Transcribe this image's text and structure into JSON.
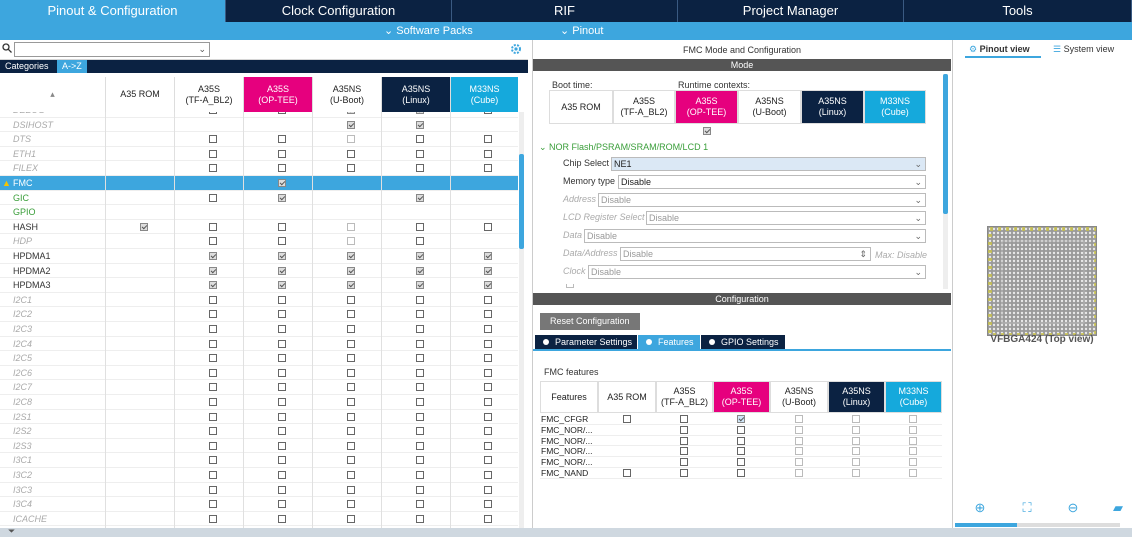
{
  "tabs": [
    "Pinout & Configuration",
    "Clock Configuration",
    "RIF",
    "Project Manager",
    "Tools"
  ],
  "subbar": {
    "software_packs": "⌄ Software Packs",
    "pinout": "⌄ Pinout"
  },
  "left": {
    "categories_label": "Categories",
    "az_label": "A->Z",
    "sort_icon": "▴",
    "col_headers": [
      "A35 ROM",
      "A35S\n(TF-A_BL2)",
      "A35S\n(OP-TEE)",
      "A35NS\n(U-Boot)",
      "A35NS\n(Linux)",
      "M33NS\n(Cube)"
    ],
    "rows": [
      {
        "name": "DEBUG",
        "italic": true,
        "color": "#aaa",
        "cells": [
          0,
          1,
          1,
          3,
          3,
          1
        ]
      },
      {
        "name": "DSIHOST",
        "italic": true,
        "color": "#aaa",
        "cells": [
          0,
          0,
          0,
          3,
          3,
          0
        ]
      },
      {
        "name": "DTS",
        "italic": true,
        "color": "#aaa",
        "cells": [
          0,
          1,
          1,
          2,
          1,
          1
        ]
      },
      {
        "name": "ETH1",
        "italic": true,
        "color": "#aaa",
        "cells": [
          0,
          1,
          1,
          1,
          1,
          1
        ]
      },
      {
        "name": "FILEX",
        "italic": true,
        "color": "#aaa",
        "cells": [
          0,
          1,
          1,
          1,
          1,
          1
        ]
      },
      {
        "name": "FMC",
        "italic": false,
        "color": "#fff",
        "selected": true,
        "warn": true,
        "cells": [
          0,
          0,
          3,
          0,
          0,
          0
        ]
      },
      {
        "name": "GIC",
        "italic": false,
        "color": "#3a9e3a",
        "cells": [
          0,
          1,
          3,
          0,
          3,
          0
        ]
      },
      {
        "name": "GPIO",
        "italic": false,
        "color": "#3a9e3a",
        "cells": [
          0,
          0,
          0,
          0,
          0,
          0
        ]
      },
      {
        "name": "HASH",
        "italic": false,
        "color": "#333",
        "cells": [
          3,
          1,
          1,
          2,
          1,
          1
        ]
      },
      {
        "name": "HDP",
        "italic": true,
        "color": "#aaa",
        "cells": [
          0,
          1,
          1,
          2,
          1,
          0
        ]
      },
      {
        "name": "HPDMA1",
        "italic": false,
        "color": "#333",
        "cells": [
          0,
          3,
          3,
          3,
          3,
          3
        ]
      },
      {
        "name": "HPDMA2",
        "italic": false,
        "color": "#333",
        "cells": [
          0,
          3,
          3,
          3,
          3,
          3
        ]
      },
      {
        "name": "HPDMA3",
        "italic": false,
        "color": "#333",
        "cells": [
          0,
          3,
          3,
          3,
          3,
          3
        ]
      },
      {
        "name": "I2C1",
        "italic": true,
        "color": "#aaa",
        "cells": [
          0,
          1,
          1,
          1,
          1,
          1
        ]
      },
      {
        "name": "I2C2",
        "italic": true,
        "color": "#aaa",
        "cells": [
          0,
          1,
          1,
          1,
          1,
          1
        ]
      },
      {
        "name": "I2C3",
        "italic": true,
        "color": "#aaa",
        "cells": [
          0,
          1,
          1,
          1,
          1,
          1
        ]
      },
      {
        "name": "I2C4",
        "italic": true,
        "color": "#aaa",
        "cells": [
          0,
          1,
          1,
          1,
          1,
          1
        ]
      },
      {
        "name": "I2C5",
        "italic": true,
        "color": "#aaa",
        "cells": [
          0,
          1,
          1,
          1,
          1,
          1
        ]
      },
      {
        "name": "I2C6",
        "italic": true,
        "color": "#aaa",
        "cells": [
          0,
          1,
          1,
          1,
          1,
          1
        ]
      },
      {
        "name": "I2C7",
        "italic": true,
        "color": "#aaa",
        "cells": [
          0,
          1,
          1,
          1,
          1,
          1
        ]
      },
      {
        "name": "I2C8",
        "italic": true,
        "color": "#aaa",
        "cells": [
          0,
          1,
          1,
          1,
          1,
          1
        ]
      },
      {
        "name": "I2S1",
        "italic": true,
        "color": "#aaa",
        "cells": [
          0,
          1,
          1,
          1,
          1,
          1
        ]
      },
      {
        "name": "I2S2",
        "italic": true,
        "color": "#aaa",
        "cells": [
          0,
          1,
          1,
          1,
          1,
          1
        ]
      },
      {
        "name": "I2S3",
        "italic": true,
        "color": "#aaa",
        "cells": [
          0,
          1,
          1,
          1,
          1,
          1
        ]
      },
      {
        "name": "I3C1",
        "italic": true,
        "color": "#aaa",
        "cells": [
          0,
          1,
          1,
          1,
          1,
          1
        ]
      },
      {
        "name": "I3C2",
        "italic": true,
        "color": "#aaa",
        "cells": [
          0,
          1,
          1,
          1,
          1,
          1
        ]
      },
      {
        "name": "I3C3",
        "italic": true,
        "color": "#aaa",
        "cells": [
          0,
          1,
          1,
          1,
          1,
          1
        ]
      },
      {
        "name": "I3C4",
        "italic": true,
        "color": "#aaa",
        "cells": [
          0,
          1,
          1,
          1,
          1,
          1
        ]
      },
      {
        "name": "ICACHE",
        "italic": true,
        "color": "#aaa",
        "cells": [
          0,
          1,
          1,
          1,
          1,
          1
        ]
      }
    ]
  },
  "mid": {
    "title": "FMC Mode and Configuration",
    "mode_bar": "Mode",
    "boot_time": "Boot time:",
    "runtime_contexts": "Runtime contexts:",
    "ctx_headers": [
      "A35 ROM",
      "A35S\n(TF-A_BL2)",
      "A35S\n(OP-TEE)",
      "A35NS\n(U-Boot)",
      "A35NS\n(Linux)",
      "M33NS\n(Cube)"
    ],
    "nor_label": "NOR Flash/PSRAM/SRAM/ROM/LCD 1",
    "fields": [
      {
        "label": "Chip Select",
        "value": "NE1",
        "disabled": false
      },
      {
        "label": "Memory type",
        "value": "Disable",
        "disabled": false
      },
      {
        "label": "Address",
        "value": "Disable",
        "disabled": true
      },
      {
        "label": "LCD Register Select",
        "value": "Disable",
        "disabled": true
      },
      {
        "label": "Data",
        "value": "Disable",
        "disabled": true
      },
      {
        "label": "Data/Address",
        "value": "Disable",
        "disabled": true
      },
      {
        "label": "Clock",
        "value": "Disable",
        "disabled": true
      }
    ],
    "max_label": "Max: Disable",
    "config_bar": "Configuration",
    "reset_button": "Reset Configuration",
    "tabs": [
      "Parameter Settings",
      "Features",
      "GPIO Settings"
    ],
    "features_title": "FMC features",
    "features_header": "Features",
    "feature_rows": [
      {
        "name": "FMC_CFGR",
        "cells": [
          1,
          1,
          3,
          2,
          2,
          2
        ]
      },
      {
        "name": "FMC_NOR/...",
        "cells": [
          0,
          1,
          1,
          2,
          2,
          2
        ]
      },
      {
        "name": "FMC_NOR/...",
        "cells": [
          0,
          1,
          1,
          2,
          2,
          2
        ]
      },
      {
        "name": "FMC_NOR/...",
        "cells": [
          0,
          1,
          1,
          2,
          2,
          2
        ]
      },
      {
        "name": "FMC_NOR/...",
        "cells": [
          0,
          1,
          1,
          2,
          2,
          2
        ]
      },
      {
        "name": "FMC_NAND",
        "cells": [
          1,
          1,
          1,
          2,
          2,
          2
        ]
      }
    ]
  },
  "right": {
    "pinout_view": "Pinout view",
    "system_view": "System view",
    "chip_label": "VFBGA424 (Top view)"
  },
  "colors": {
    "accent": "#3da6de",
    "navy": "#0b2242",
    "pink": "#e6007e",
    "cyan": "#15a9dc"
  }
}
